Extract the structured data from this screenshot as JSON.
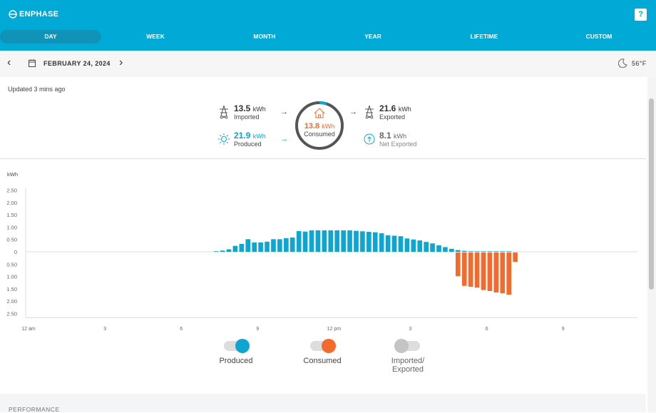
{
  "header": {
    "brand": "ENPHASE",
    "help_icon": "?",
    "brand_color": "#00a9d6"
  },
  "tabs": [
    {
      "label": "DAY",
      "active": true
    },
    {
      "label": "WEEK"
    },
    {
      "label": "MONTH"
    },
    {
      "label": "YEAR"
    },
    {
      "label": "LIFETIME"
    },
    {
      "label": "CUSTOM"
    }
  ],
  "datebar": {
    "date": "FEBRUARY 24, 2024",
    "weather": "56°F",
    "weather_icon": "moon-icon"
  },
  "summary": {
    "updated": "Updated 3 mins ago",
    "imported": {
      "value": "13.5",
      "unit": "kWh",
      "label": "Imported"
    },
    "produced": {
      "value": "21.9",
      "unit": "kWh",
      "label": "Produced"
    },
    "consumed": {
      "value": "13.8",
      "unit": "kWh",
      "label": "Consumed"
    },
    "exported": {
      "value": "21.6",
      "unit": "kWh",
      "label": "Exported"
    },
    "net": {
      "value": "8.1",
      "unit": "kWh",
      "label": "Net Exported"
    },
    "arrow": "→"
  },
  "chart_data": {
    "type": "bar",
    "ylabel": "kWh",
    "ylim": [
      -2.5,
      2.5
    ],
    "y_ticks_top": [
      "2.50",
      "2.00",
      "1.50",
      "1.00",
      "0.50"
    ],
    "y_tick_zero": "0",
    "y_ticks_bottom": [
      "0.50",
      "1.00",
      "1.50",
      "2.00",
      "2.50"
    ],
    "x_ticks": [
      "12 am",
      "3",
      "6",
      "9",
      "12 pm",
      "3",
      "6",
      "9"
    ],
    "interval": "15 min",
    "grid": false,
    "series": [
      {
        "name": "Produced",
        "color": "#0ea5d0",
        "direction": "up",
        "values": [
          0,
          0,
          0,
          0,
          0,
          0,
          0,
          0,
          0,
          0,
          0,
          0,
          0,
          0,
          0,
          0,
          0,
          0,
          0,
          0,
          0,
          0,
          0,
          0,
          0,
          0,
          0,
          0,
          0,
          0.02,
          0.05,
          0.1,
          0.24,
          0.32,
          0.51,
          0.38,
          0.38,
          0.41,
          0.51,
          0.51,
          0.55,
          0.58,
          0.84,
          0.82,
          0.87,
          0.87,
          0.87,
          0.87,
          0.87,
          0.87,
          0.87,
          0.85,
          0.83,
          0.81,
          0.79,
          0.75,
          0.67,
          0.65,
          0.63,
          0.54,
          0.5,
          0.46,
          0.4,
          0.34,
          0.26,
          0.19,
          0.12,
          0.07,
          0.04,
          0.02,
          0.02,
          0.02,
          0.02,
          0.02,
          0.02,
          0.02,
          0,
          0,
          0,
          0,
          0,
          0,
          0,
          0,
          0,
          0,
          0,
          0,
          0,
          0,
          0,
          0,
          0,
          0,
          0,
          0
        ]
      },
      {
        "name": "Consumed",
        "color": "#f26a2e",
        "direction": "down",
        "values": [
          0,
          0,
          0,
          0,
          0,
          0,
          0,
          0,
          0,
          0,
          0,
          0,
          0,
          0,
          0,
          0,
          0,
          0,
          0,
          0,
          0,
          0,
          0,
          0,
          0,
          0,
          0,
          0,
          0,
          0,
          0,
          0,
          0,
          0,
          0,
          0,
          0,
          0,
          0,
          0,
          0,
          0,
          0,
          0,
          0,
          0,
          0,
          0,
          0,
          0,
          0,
          0,
          0,
          0,
          0,
          0,
          0,
          0,
          0,
          0,
          0,
          0,
          0,
          0,
          0,
          0,
          0,
          0.96,
          1.35,
          1.39,
          1.42,
          1.52,
          1.56,
          1.62,
          1.65,
          1.71,
          0.38,
          0,
          0,
          0,
          0,
          0,
          0,
          0,
          0,
          0,
          0,
          0,
          0,
          0,
          0,
          0,
          0,
          0,
          0,
          0
        ]
      }
    ]
  },
  "legend": [
    {
      "label": "Produced",
      "on": true,
      "color": "#0ea5d0"
    },
    {
      "label": "Consumed",
      "on": true,
      "color": "#f26a2e"
    },
    {
      "label_1": "Imported/",
      "label_2": "Exported",
      "on": false,
      "color": "#c4c4c4"
    }
  ],
  "footer": {
    "section": "PERFORMANCE"
  }
}
